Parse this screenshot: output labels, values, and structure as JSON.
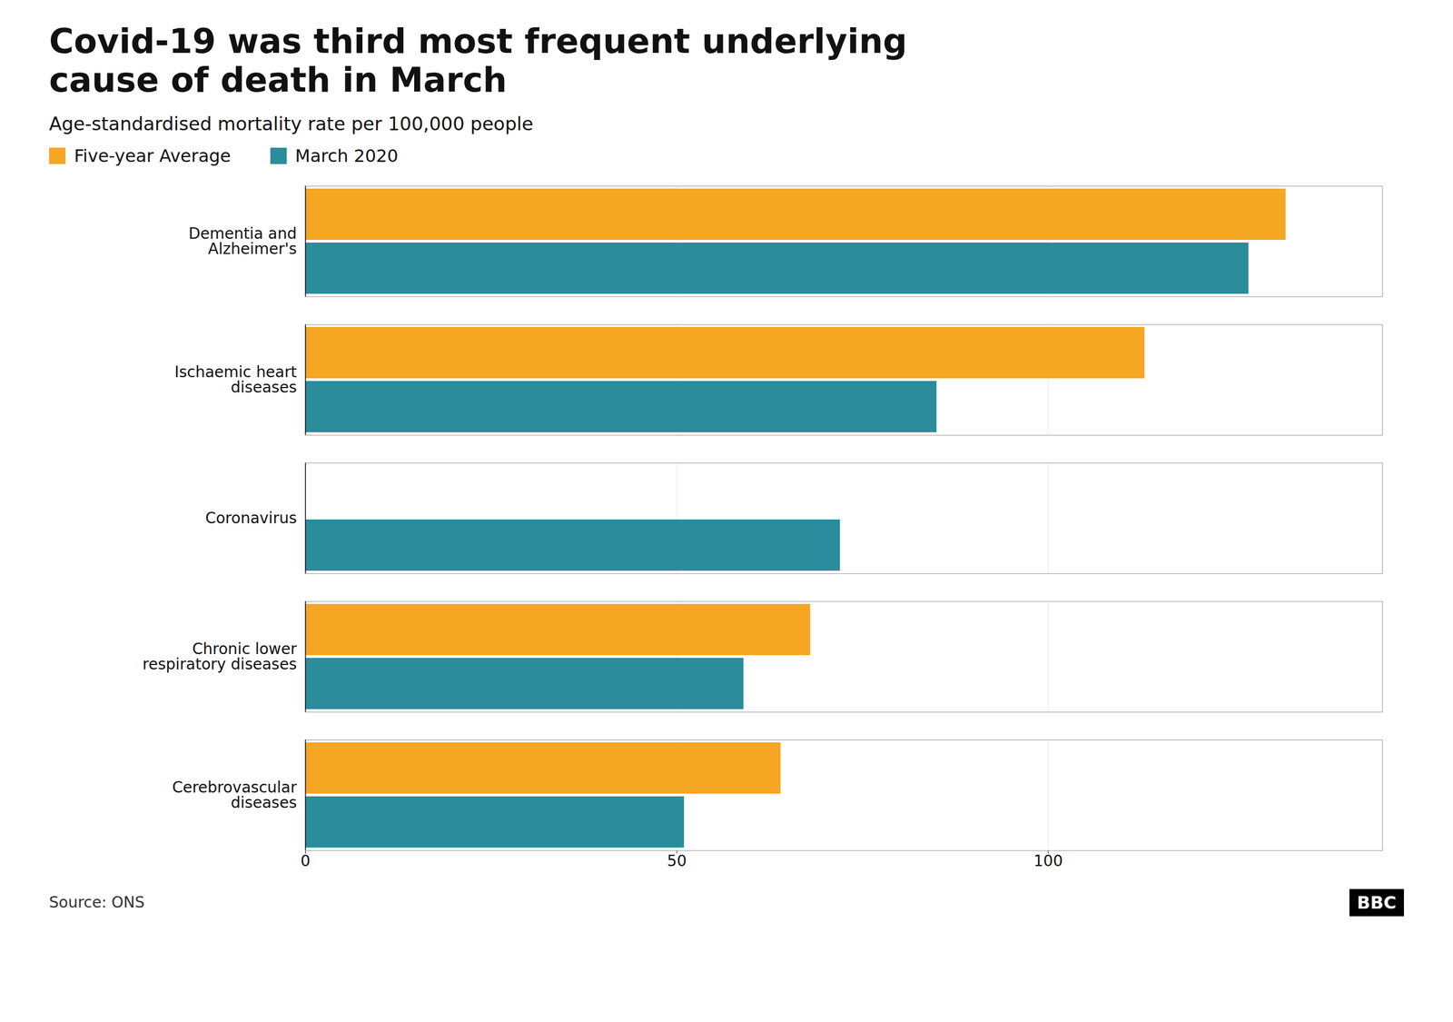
{
  "chart_data": {
    "type": "bar",
    "orientation": "horizontal",
    "title": "Covid-19 was third most frequent underlying\ncause of death in March",
    "subtitle": "Age-standardised mortality rate per 100,000 people",
    "source": "Source: ONS",
    "annotations": [
      "BBC"
    ],
    "categories": [
      "Dementia and\nAlzheimer's",
      "Ischaemic heart\ndiseases",
      "Coronavirus",
      "Chronic lower\nrespiratory diseases",
      "Cerebrovascular\ndiseases"
    ],
    "series": [
      {
        "name": "Five-year Average",
        "color": "#f5a623",
        "values": [
          132,
          113,
          0,
          68,
          64
        ]
      },
      {
        "name": "March 2020",
        "color": "#2b8c9b",
        "values": [
          127,
          85,
          72,
          59,
          51
        ]
      }
    ],
    "xlim": [
      0,
      145
    ],
    "xticks": [
      0,
      50,
      100
    ],
    "grid": true,
    "legend": "top-left"
  }
}
